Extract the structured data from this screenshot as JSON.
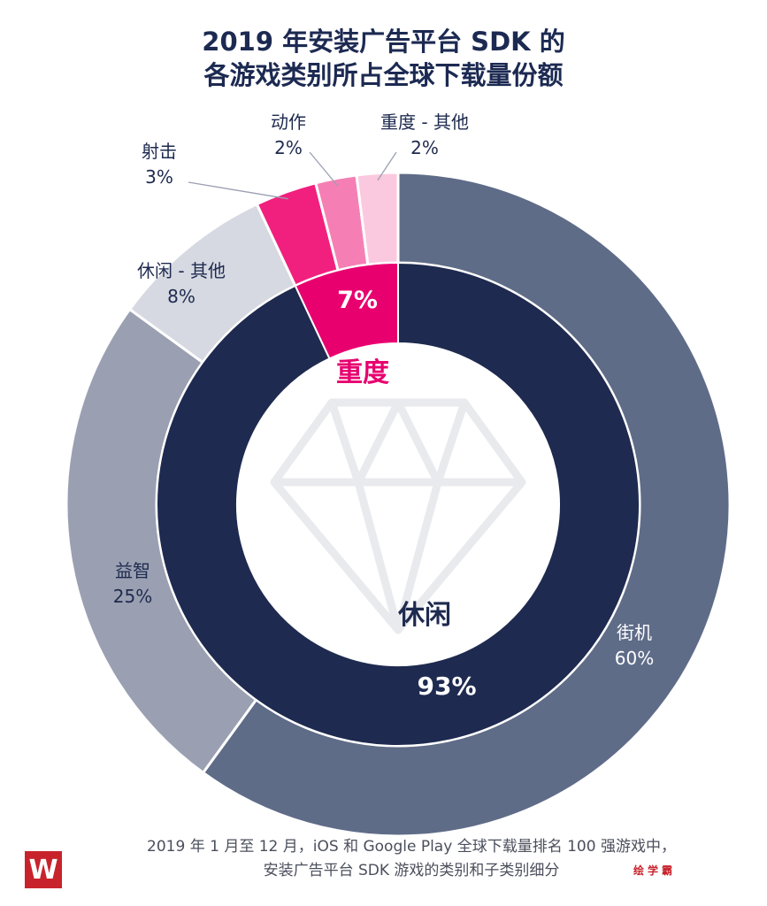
{
  "title": {
    "line1": "2019 年安装广告平台 SDK 的",
    "line2": "各游戏类别所占全球下载量份额"
  },
  "chart_data": {
    "type": "pie",
    "inner": [
      {
        "name": "休闲",
        "value": 93,
        "label": "93%",
        "color": "#1e2a4f"
      },
      {
        "name": "重度",
        "value": 7,
        "label": "7%",
        "color": "#e8006f"
      }
    ],
    "outer": [
      {
        "name": "街机",
        "value": 60,
        "label": "60%",
        "color": "#5f6c88"
      },
      {
        "name": "益智",
        "value": 25,
        "label": "25%",
        "color": "#9aa0b1"
      },
      {
        "name": "休闲 - 其他",
        "value": 8,
        "label": "8%",
        "color": "#d6d9e1"
      },
      {
        "name": "射击",
        "value": 3,
        "label": "3%",
        "color": "#f1207e"
      },
      {
        "name": "动作",
        "value": 2,
        "label": "2%",
        "color": "#f57fb4"
      },
      {
        "name": "重度 - 其他",
        "value": 2,
        "label": "2%",
        "color": "#fbc9df"
      }
    ]
  },
  "footer": {
    "line1": "2019 年 1 月至 12 月，iOS 和 Google Play 全球下载量排名 100 强游戏中，",
    "line2": "安装广告平台 SDK 游戏的类别和子类别细分"
  },
  "logo": {
    "text": "W"
  },
  "brand": {
    "text": "绘学霸"
  }
}
